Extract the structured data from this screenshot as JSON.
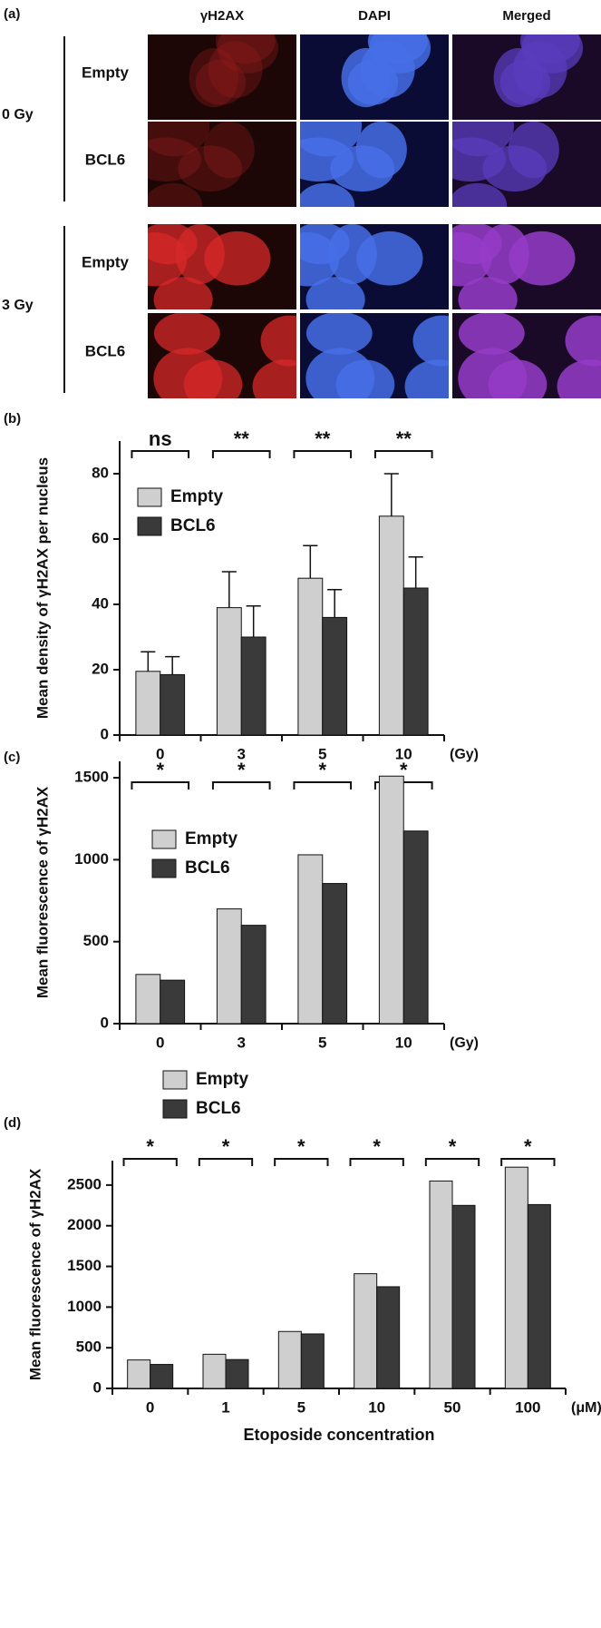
{
  "panel_a": {
    "label": "(a)",
    "columns": [
      "γH2AX",
      "DAPI",
      "Merged"
    ],
    "groups": [
      {
        "dose": "0 Gy",
        "rows": [
          "Empty",
          "BCL6"
        ]
      },
      {
        "dose": "3 Gy",
        "rows": [
          "Empty",
          "BCL6"
        ]
      }
    ]
  },
  "chart_data": [
    {
      "type": "bar",
      "panel_label": "(b)",
      "y_label": "Mean density of γH2AX per nucleus",
      "x_unit": "(Gy)",
      "categories": [
        "0",
        "3",
        "5",
        "10"
      ],
      "series": [
        {
          "name": "Empty",
          "color": "#cfcfcf",
          "values": [
            19.5,
            39,
            48,
            67
          ],
          "errors": [
            6,
            11,
            10,
            13
          ]
        },
        {
          "name": "BCL6",
          "color": "#3a3a3a",
          "values": [
            18.5,
            30,
            36,
            45
          ],
          "errors": [
            5.5,
            9.5,
            8.5,
            9.5
          ]
        }
      ],
      "annotations": [
        "ns",
        "**",
        "**",
        "**"
      ],
      "ylim": [
        0,
        90
      ],
      "yticks": [
        0,
        20,
        40,
        60,
        80
      ]
    },
    {
      "type": "bar",
      "panel_label": "(c)",
      "y_label": "Mean fluorescence of γH2AX",
      "x_unit": "(Gy)",
      "categories": [
        "0",
        "3",
        "5",
        "10"
      ],
      "series": [
        {
          "name": "Empty",
          "color": "#cfcfcf",
          "values": [
            300,
            700,
            1030,
            1510
          ]
        },
        {
          "name": "BCL6",
          "color": "#3a3a3a",
          "values": [
            265,
            600,
            855,
            1175
          ]
        }
      ],
      "annotations": [
        "*",
        "*",
        "*",
        "*"
      ],
      "ylim": [
        0,
        1600
      ],
      "yticks": [
        0,
        500,
        1000,
        1500
      ]
    },
    {
      "type": "bar",
      "panel_label": "(d)",
      "y_label": "Mean fluorescence of γH2AX",
      "x_unit": "(μM)",
      "x_label": "Etoposide concentration",
      "categories": [
        "0",
        "1",
        "5",
        "10",
        "50",
        "100"
      ],
      "series": [
        {
          "name": "Empty",
          "color": "#cfcfcf",
          "values": [
            350,
            420,
            700,
            1410,
            2550,
            2720
          ]
        },
        {
          "name": "BCL6",
          "color": "#3a3a3a",
          "values": [
            295,
            355,
            670,
            1250,
            2250,
            2260
          ]
        }
      ],
      "annotations": [
        "*",
        "*",
        "*",
        "*",
        "*",
        "*"
      ],
      "ylim": [
        0,
        2800
      ],
      "yticks": [
        0,
        500,
        1000,
        1500,
        2000,
        2500
      ]
    }
  ]
}
